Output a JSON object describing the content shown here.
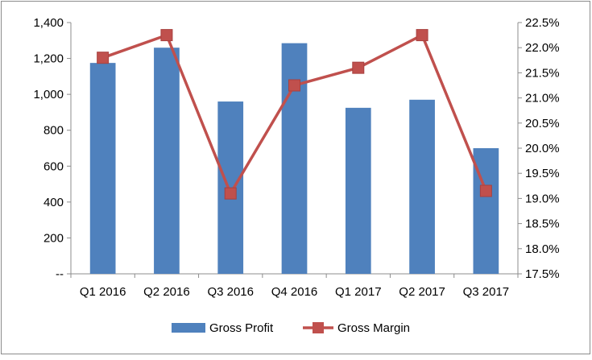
{
  "chart_data": {
    "type": "bar+line",
    "categories": [
      "Q1 2016",
      "Q2 2016",
      "Q3 2016",
      "Q4 2016",
      "Q1 2017",
      "Q2 2017",
      "Q3 2017"
    ],
    "series": [
      {
        "name": "Gross Profit",
        "type": "bar",
        "axis": "left",
        "color": "#4f81bd",
        "values": [
          1175,
          1260,
          960,
          1285,
          925,
          970,
          700
        ]
      },
      {
        "name": "Gross Margin",
        "type": "line",
        "axis": "right",
        "color": "#c0504d",
        "values": [
          21.8,
          22.25,
          19.1,
          21.25,
          21.6,
          22.25,
          19.15
        ]
      }
    ],
    "y_left": {
      "ylim": [
        0,
        1400
      ],
      "ticks": [
        0,
        200,
        400,
        600,
        800,
        1000,
        1200,
        1400
      ],
      "tick_labels": [
        "--",
        "200",
        "400",
        "600",
        "800",
        "1,000",
        "1,200",
        "1,400"
      ]
    },
    "y_right": {
      "ylim": [
        17.5,
        22.5
      ],
      "ticks": [
        17.5,
        18.0,
        18.5,
        19.0,
        19.5,
        20.0,
        20.5,
        21.0,
        21.5,
        22.0,
        22.5
      ],
      "tick_labels": [
        "17.5%",
        "18.0%",
        "18.5%",
        "19.0%",
        "19.5%",
        "20.0%",
        "20.5%",
        "21.0%",
        "21.5%",
        "22.0%",
        "22.5%"
      ]
    },
    "grid": false,
    "legend_position": "bottom"
  }
}
